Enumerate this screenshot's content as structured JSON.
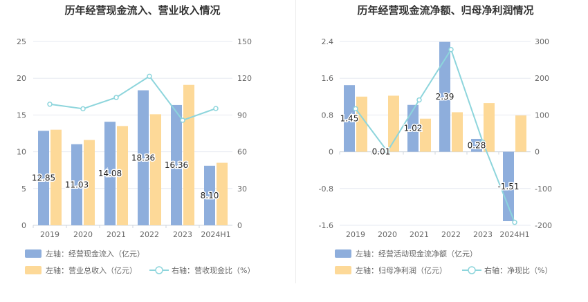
{
  "colors": {
    "bar_blue": "#8EAEDC",
    "bar_orange": "#FDD998",
    "line_teal": "#8DD5DC",
    "axis_text": "#666666",
    "grid": "#E6E9F0",
    "title": "#333333"
  },
  "chart_data": [
    {
      "type": "bar",
      "title": "历年经营现金流入、营业收入情况",
      "categories": [
        "2019",
        "2020",
        "2021",
        "2022",
        "2023",
        "2024H1"
      ],
      "left_axis": {
        "min": 0,
        "max": 25,
        "ticks": [
          "0",
          "5",
          "10",
          "15",
          "20",
          "25"
        ]
      },
      "right_axis": {
        "min": 0,
        "max": 150,
        "ticks": [
          "0",
          "30",
          "60",
          "90",
          "120",
          "150"
        ]
      },
      "series": [
        {
          "name": "左轴：经营现金流入（亿元）",
          "type": "bar",
          "axis": "left",
          "values": [
            12.85,
            11.03,
            14.08,
            18.36,
            16.36,
            8.1
          ],
          "labels": [
            "12.85",
            "11.03",
            "14.08",
            "18.36",
            "16.36",
            "8.10"
          ]
        },
        {
          "name": "左轴：营业总收入（亿元）",
          "type": "bar",
          "axis": "left",
          "values": [
            13.0,
            11.6,
            13.5,
            15.1,
            19.1,
            8.5
          ]
        },
        {
          "name": "右轴：营收现金比（%）",
          "type": "line",
          "axis": "right",
          "values": [
            98.8,
            95.1,
            104.3,
            121.6,
            85.7,
            95.3
          ]
        }
      ],
      "grid": true,
      "legend_position": "bottom-left"
    },
    {
      "type": "bar",
      "title": "历年经营现金流净额、归母净利润情况",
      "categories": [
        "2019",
        "2020",
        "2021",
        "2022",
        "2023",
        "2024H1"
      ],
      "left_axis": {
        "min": -1.6,
        "max": 2.4,
        "ticks": [
          "-1.6",
          "-0.8",
          "0",
          "0.8",
          "1.6",
          "2.4"
        ]
      },
      "right_axis": {
        "min": -200,
        "max": 300,
        "ticks": [
          "-200",
          "-100",
          "0",
          "100",
          "200",
          "300"
        ]
      },
      "series": [
        {
          "name": "左轴：经营活动现金流净额（亿元）",
          "type": "bar",
          "axis": "left",
          "values": [
            1.45,
            0.01,
            1.02,
            2.39,
            0.28,
            -1.51
          ],
          "labels": [
            "1.45",
            "0.01",
            "1.02",
            "2.39",
            "0.28",
            "-1.51"
          ]
        },
        {
          "name": "左轴：归母净利润（亿元）",
          "type": "bar",
          "axis": "left",
          "values": [
            1.2,
            1.22,
            0.72,
            0.86,
            1.06,
            0.79
          ]
        },
        {
          "name": "右轴：净现比（%）",
          "type": "line",
          "axis": "right",
          "values": [
            117,
            1,
            141,
            278,
            26,
            -192
          ]
        }
      ],
      "grid": true,
      "legend_position": "bottom-left"
    }
  ]
}
